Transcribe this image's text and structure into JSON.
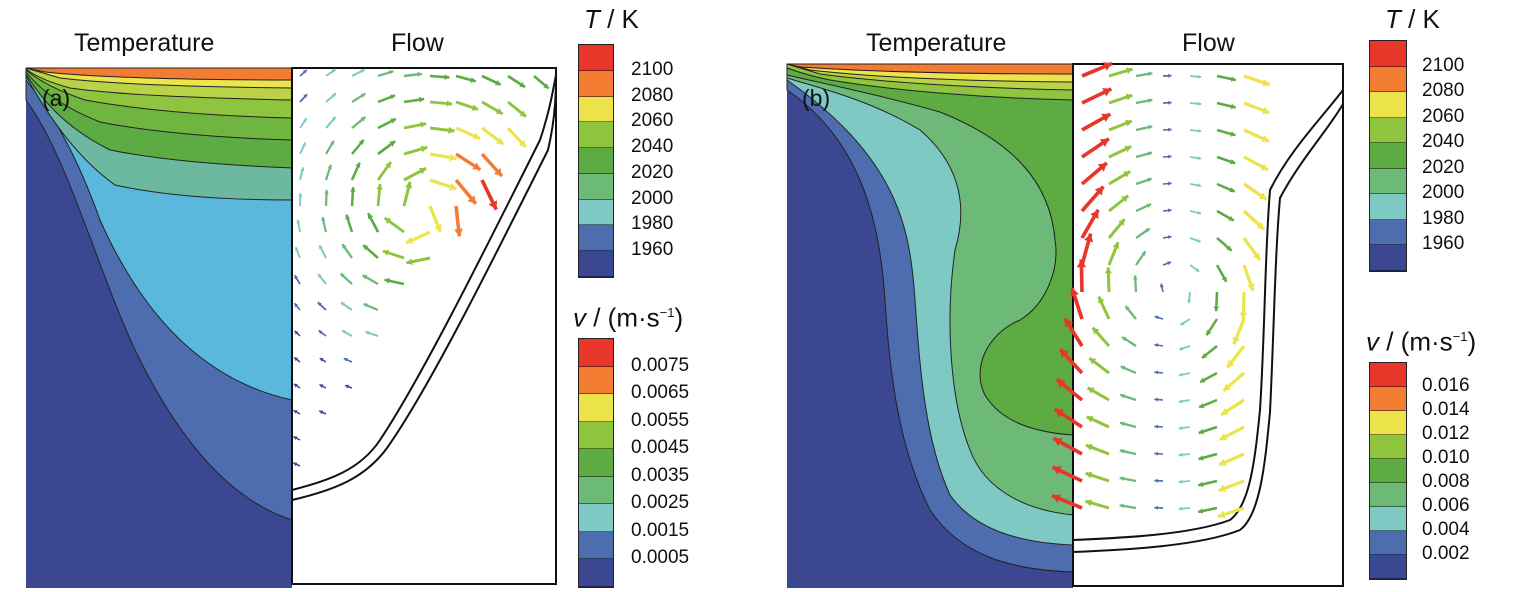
{
  "panels": [
    {
      "id": "a",
      "tag": "(a)",
      "temperature_heading": "Temperature",
      "flow_heading": "Flow",
      "temperature_scale": {
        "symbol": "T",
        "unit": " / K",
        "labels": [
          "2100",
          "2080",
          "2060",
          "2040",
          "2020",
          "2000",
          "1980",
          "1960"
        ],
        "colors": [
          "#e8372a",
          "#f17c32",
          "#ece44a",
          "#8fc43e",
          "#5cab43",
          "#6db978",
          "#7fc9c4",
          "#4e6daf",
          "#3b4790"
        ]
      },
      "velocity_scale": {
        "symbol": "v",
        "unit_prefix": " / (m·s",
        "unit_exponent": "−1",
        "unit_suffix": ")",
        "labels": [
          "0.0075",
          "0.0065",
          "0.0055",
          "0.0045",
          "0.0035",
          "0.0025",
          "0.0015",
          "0.0005"
        ],
        "colors": [
          "#e8372a",
          "#f17c32",
          "#ece44a",
          "#8fc43e",
          "#5cab43",
          "#6db978",
          "#7fc9c4",
          "#4e6daf",
          "#3b4790"
        ]
      }
    },
    {
      "id": "b",
      "tag": "(b)",
      "temperature_heading": "Temperature",
      "flow_heading": "Flow",
      "temperature_scale": {
        "symbol": "T",
        "unit": " / K",
        "labels": [
          "2100",
          "2080",
          "2060",
          "2040",
          "2020",
          "2000",
          "1980",
          "1960"
        ],
        "colors": [
          "#e8372a",
          "#f17c32",
          "#ece44a",
          "#8fc43e",
          "#5cab43",
          "#6db978",
          "#7fc9c4",
          "#4e6daf",
          "#3b4790"
        ]
      },
      "velocity_scale": {
        "symbol": "v",
        "unit_prefix": " / (m·s",
        "unit_exponent": "−1",
        "unit_suffix": ")",
        "labels": [
          "0.016",
          "0.014",
          "0.012",
          "0.010",
          "0.008",
          "0.006",
          "0.004",
          "0.002"
        ],
        "colors": [
          "#e8372a",
          "#f17c32",
          "#ece44a",
          "#8fc43e",
          "#5cab43",
          "#6db978",
          "#7fc9c4",
          "#4e6daf",
          "#3b4790"
        ]
      }
    }
  ]
}
